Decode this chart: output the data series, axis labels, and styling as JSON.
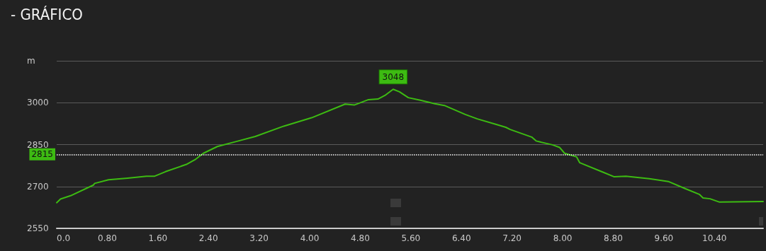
{
  "chart_data": {
    "type": "line",
    "title": "- GRÁFICO",
    "x": [
      0,
      0.06,
      0.22,
      0.58,
      0.6,
      0.82,
      1.12,
      1.42,
      1.55,
      1.72,
      2.05,
      2.2,
      2.32,
      2.54,
      2.84,
      3.14,
      3.59,
      4.03,
      4.56,
      4.71,
      4.93,
      5.08,
      5.19,
      5.32,
      5.42,
      5.56,
      5.75,
      5.98,
      6.13,
      6.46,
      6.65,
      6.95,
      7.1,
      7.17,
      7.51,
      7.58,
      7.84,
      7.95,
      8.03,
      8.22,
      8.27,
      8.63,
      8.81,
      9.0,
      9.37,
      9.67,
      9.93,
      10.16,
      10.22,
      10.33,
      10.48,
      11.17
    ],
    "series": [
      {
        "color": "#3dbb12",
        "values": [
          2642,
          2655,
          2667,
          2705,
          2711,
          2724,
          2730,
          2737,
          2737,
          2753,
          2779,
          2798,
          2819,
          2843,
          2861,
          2879,
          2916,
          2946,
          2995,
          2992,
          3011,
          3013,
          3026,
          3048,
          3039,
          3018,
          3009,
          2996,
          2990,
          2958,
          2942,
          2922,
          2912,
          2904,
          2877,
          2863,
          2849,
          2840,
          2819,
          2806,
          2785,
          2752,
          2735,
          2737,
          2728,
          2718,
          2693,
          2672,
          2659,
          2656,
          2644,
          2646
        ]
      }
    ],
    "xlim": [
      0,
      11.17
    ],
    "xticks": [
      {
        "value": 0,
        "label": "0.0"
      },
      {
        "value": 0.8,
        "label": "0.80"
      },
      {
        "value": 1.6,
        "label": "1.60"
      },
      {
        "value": 2.4,
        "label": "2.40"
      },
      {
        "value": 3.2,
        "label": "3.20"
      },
      {
        "value": 4,
        "label": "4.00"
      },
      {
        "value": 4.8,
        "label": "4.80"
      },
      {
        "value": 5.6,
        "label": "5.60"
      },
      {
        "value": 6.4,
        "label": "6.40"
      },
      {
        "value": 7.2,
        "label": "7.20"
      },
      {
        "value": 8,
        "label": "8.00"
      },
      {
        "value": 8.8,
        "label": "8.80"
      },
      {
        "value": 9.6,
        "label": "9.60"
      },
      {
        "value": 10.4,
        "label": "10.40"
      }
    ],
    "ylim": [
      2550,
      3150
    ],
    "yticks": [
      2550,
      2700,
      2850,
      3000,
      {
        "value": 3150,
        "label": "m"
      }
    ],
    "ref_lines": [
      {
        "axis": "y",
        "value": 2815,
        "label": "2815",
        "color": "#ffffff",
        "line_style": "dotted"
      }
    ],
    "annotations": [
      {
        "text": "3048",
        "x": 5.32,
        "y": 3048
      }
    ],
    "grid": "y",
    "marker": "none",
    "line_style": "solid"
  }
}
